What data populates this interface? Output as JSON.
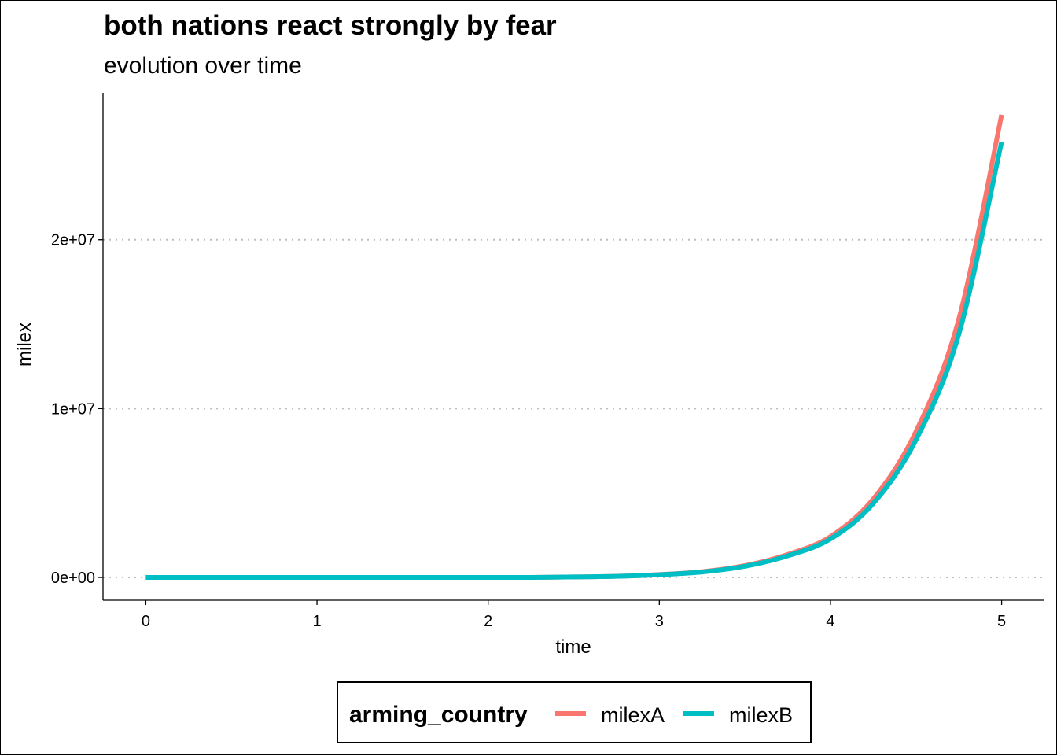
{
  "chart_data": {
    "type": "line",
    "title": "both nations react strongly by fear",
    "subtitle": "evolution over time",
    "xlabel": "time",
    "ylabel": "milex",
    "xlim": [
      -0.25,
      5.25
    ],
    "ylim": [
      -1350000,
      28700000
    ],
    "x_ticks": [
      0,
      1,
      2,
      3,
      4,
      5
    ],
    "x_tick_labels": [
      "0",
      "1",
      "2",
      "3",
      "4",
      "5"
    ],
    "y_ticks": [
      0,
      10000000,
      20000000
    ],
    "y_tick_labels": [
      "0e+00",
      "1e+07",
      "2e+07"
    ],
    "grid": "horizontal-major-dotted",
    "legend": {
      "title": "arming_country",
      "position": "bottom"
    },
    "series": [
      {
        "name": "milexA",
        "color": "#F8766D",
        "x": [
          0,
          0.25,
          0.5,
          0.75,
          1,
          1.25,
          1.5,
          1.75,
          2,
          2.25,
          2.5,
          2.75,
          3,
          3.25,
          3.5,
          3.75,
          4,
          4.25,
          4.5,
          4.75,
          5
        ],
        "y": [
          0,
          0,
          0,
          0,
          0,
          0,
          0,
          0,
          0,
          0,
          30000,
          70000,
          170000,
          340000,
          700000,
          1360000,
          2420000,
          4650000,
          8650000,
          15300000,
          27400000
        ]
      },
      {
        "name": "milexB",
        "color": "#00BFC4",
        "x": [
          0,
          0.25,
          0.5,
          0.75,
          1,
          1.25,
          1.5,
          1.75,
          2,
          2.25,
          2.5,
          2.75,
          3,
          3.25,
          3.5,
          3.75,
          4,
          4.25,
          4.5,
          4.75,
          5
        ],
        "y": [
          0,
          0,
          0,
          0,
          0,
          0,
          0,
          0,
          0,
          0,
          30000,
          65000,
          160000,
          320000,
          660000,
          1280000,
          2280000,
          4380000,
          8150000,
          14400000,
          25800000
        ]
      }
    ]
  }
}
